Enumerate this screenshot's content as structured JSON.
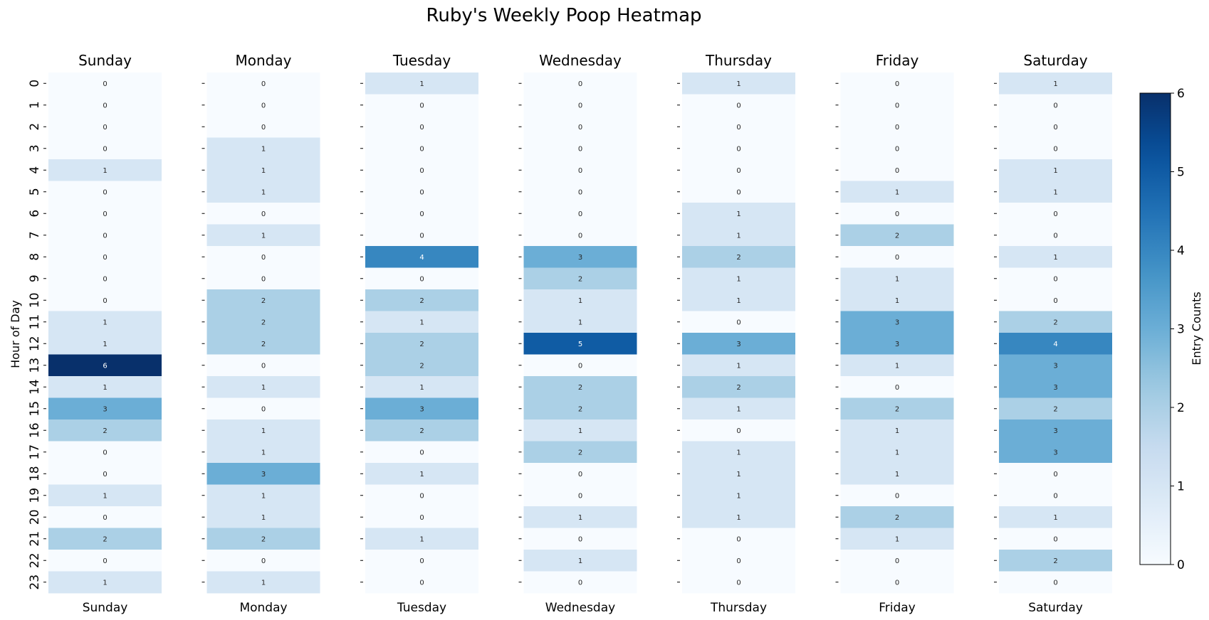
{
  "chart_data": {
    "type": "heatmap",
    "title": "Ruby's Weekly Poop Heatmap",
    "ylabel": "Hour of Day",
    "days": [
      "Sunday",
      "Monday",
      "Tuesday",
      "Wednesday",
      "Thursday",
      "Friday",
      "Saturday"
    ],
    "hours": [
      0,
      1,
      2,
      3,
      4,
      5,
      6,
      7,
      8,
      9,
      10,
      11,
      12,
      13,
      14,
      15,
      16,
      17,
      18,
      19,
      20,
      21,
      22,
      23
    ],
    "values": {
      "Sunday": [
        0,
        0,
        0,
        0,
        1,
        0,
        0,
        0,
        0,
        0,
        0,
        1,
        1,
        6,
        1,
        3,
        2,
        0,
        0,
        1,
        0,
        2,
        0,
        1
      ],
      "Monday": [
        0,
        0,
        0,
        1,
        1,
        1,
        0,
        1,
        0,
        0,
        2,
        2,
        2,
        0,
        1,
        0,
        1,
        1,
        3,
        1,
        1,
        2,
        0,
        1
      ],
      "Tuesday": [
        1,
        0,
        0,
        0,
        0,
        0,
        0,
        0,
        4,
        0,
        2,
        1,
        2,
        2,
        1,
        3,
        2,
        0,
        1,
        0,
        0,
        1,
        0,
        0
      ],
      "Wednesday": [
        0,
        0,
        0,
        0,
        0,
        0,
        0,
        0,
        3,
        2,
        1,
        1,
        5,
        0,
        2,
        2,
        1,
        2,
        0,
        0,
        1,
        0,
        1,
        0
      ],
      "Thursday": [
        1,
        0,
        0,
        0,
        0,
        0,
        1,
        1,
        2,
        1,
        1,
        0,
        3,
        1,
        2,
        1,
        0,
        1,
        1,
        1,
        1,
        0,
        0,
        0
      ],
      "Friday": [
        0,
        0,
        0,
        0,
        0,
        1,
        0,
        2,
        0,
        1,
        1,
        3,
        3,
        1,
        0,
        2,
        1,
        1,
        1,
        0,
        2,
        1,
        0,
        0
      ],
      "Saturday": [
        1,
        0,
        0,
        0,
        1,
        1,
        0,
        0,
        1,
        0,
        0,
        2,
        4,
        3,
        3,
        2,
        3,
        3,
        0,
        0,
        1,
        0,
        2,
        0
      ]
    },
    "colorbar": {
      "label": "Entry Counts",
      "range": [
        0,
        6
      ],
      "ticks": [
        0,
        1,
        2,
        3,
        4,
        5,
        6
      ],
      "colormap": "Blues"
    },
    "annotations": "cell counts shown in each cell"
  }
}
